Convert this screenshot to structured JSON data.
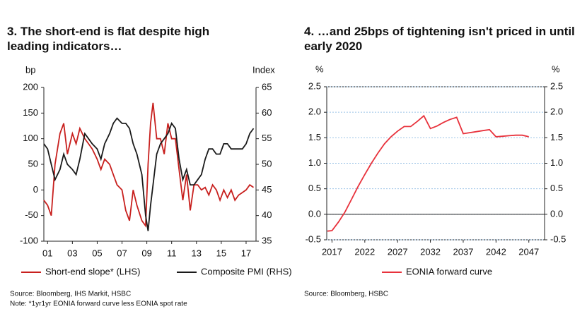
{
  "chart_data": [
    {
      "type": "line",
      "title": "3. The short-end is flat despite high leading indicators…",
      "y_label": "bp",
      "y2_label": "Index",
      "x": [
        2000.7,
        2001.0,
        2001.3,
        2001.6,
        2002.0,
        2002.3,
        2002.6,
        2003.0,
        2003.3,
        2003.6,
        2004.0,
        2004.3,
        2004.6,
        2005.0,
        2005.3,
        2005.6,
        2006.0,
        2006.3,
        2006.6,
        2007.0,
        2007.3,
        2007.6,
        2007.9,
        2008.2,
        2008.6,
        2008.9,
        2009.1,
        2009.3,
        2009.5,
        2009.8,
        2010.1,
        2010.4,
        2010.7,
        2011.0,
        2011.3,
        2011.6,
        2011.9,
        2012.2,
        2012.5,
        2012.8,
        2013.1,
        2013.4,
        2013.7,
        2014.0,
        2014.3,
        2014.6,
        2014.9,
        2015.2,
        2015.5,
        2015.8,
        2016.1,
        2016.4,
        2016.7,
        2017.0,
        2017.3,
        2017.6
      ],
      "series": [
        {
          "name": "Short-end slope* (LHS)",
          "color": "#c8201e",
          "values": [
            -20,
            -30,
            -50,
            50,
            110,
            130,
            70,
            110,
            90,
            120,
            100,
            90,
            80,
            60,
            40,
            60,
            50,
            30,
            10,
            0,
            -40,
            -60,
            0,
            -30,
            -60,
            -70,
            50,
            130,
            170,
            100,
            100,
            70,
            130,
            100,
            100,
            40,
            -20,
            30,
            -40,
            10,
            10,
            0,
            5,
            -10,
            10,
            0,
            -20,
            0,
            -15,
            0,
            -20,
            -10,
            -5,
            0,
            10,
            5
          ]
        },
        {
          "name": "Composite PMI (RHS)",
          "color": "#1a1a1a",
          "axis": "y2",
          "values": [
            54,
            53,
            50,
            47,
            49,
            52,
            50,
            49,
            48,
            51,
            56,
            55,
            54,
            53,
            51,
            54,
            56,
            58,
            59,
            58,
            58,
            57,
            54,
            52,
            48,
            40,
            37,
            42,
            46,
            52,
            54,
            55,
            56,
            58,
            57,
            51,
            47,
            49,
            46,
            46,
            47,
            48,
            51,
            53,
            53,
            52,
            52,
            54,
            54,
            53,
            53,
            53,
            53,
            54,
            56,
            57
          ]
        }
      ],
      "xlim": [
        2000.7,
        2017.8
      ],
      "xticks": [
        {
          "value": 2001,
          "label": "01"
        },
        {
          "value": 2003,
          "label": "03"
        },
        {
          "value": 2005,
          "label": "05"
        },
        {
          "value": 2007,
          "label": "07"
        },
        {
          "value": 2009,
          "label": "09"
        },
        {
          "value": 2011,
          "label": "11"
        },
        {
          "value": 2013,
          "label": "13"
        },
        {
          "value": 2015,
          "label": "15"
        },
        {
          "value": 2017,
          "label": "17"
        }
      ],
      "ylim": [
        -100,
        200
      ],
      "yticks": [
        -100,
        -50,
        0,
        50,
        100,
        150,
        200
      ],
      "y2lim": [
        35,
        65
      ],
      "y2ticks": [
        35,
        40,
        45,
        50,
        55,
        60,
        65
      ],
      "grid": false,
      "source": "Source: Bloomberg, IHS Markit, HSBC",
      "note": "Note: *1yr1yr EONIA forward curve less EONIA spot rate"
    },
    {
      "type": "line",
      "title": "4. …and 25bps of tightening isn't priced in until early 2020",
      "y_label": "%",
      "y2_label": "%",
      "x": [
        2016.3,
        2017,
        2018,
        2019,
        2020,
        2021,
        2022,
        2023,
        2024,
        2025,
        2026,
        2027,
        2028,
        2029,
        2030,
        2031,
        2032,
        2033,
        2034,
        2035,
        2036,
        2037,
        2038,
        2039,
        2040,
        2041,
        2042,
        2043,
        2044,
        2045,
        2046,
        2047
      ],
      "series": [
        {
          "name": "EONIA forward curve",
          "color": "#e8323c",
          "values": [
            -0.33,
            -0.32,
            -0.15,
            0.05,
            0.3,
            0.55,
            0.78,
            1.0,
            1.2,
            1.38,
            1.52,
            1.63,
            1.72,
            1.72,
            1.82,
            1.93,
            1.68,
            1.73,
            1.8,
            1.86,
            1.9,
            1.58,
            1.6,
            1.62,
            1.64,
            1.66,
            1.52,
            1.53,
            1.54,
            1.55,
            1.55,
            1.52
          ]
        }
      ],
      "xlim": [
        2016.2,
        2049.4
      ],
      "xticks": [
        2017,
        2022,
        2027,
        2032,
        2037,
        2042,
        2047
      ],
      "ylim": [
        -0.5,
        2.5
      ],
      "yticks": [
        -0.5,
        {
          "value": 0,
          "label": "0.0"
        },
        0.5,
        {
          "value": 1,
          "label": "1.0"
        },
        1.5,
        {
          "value": 2,
          "label": "2.0"
        },
        2.5
      ],
      "grid": true,
      "source": "Source: Bloomberg, HSBC"
    }
  ]
}
